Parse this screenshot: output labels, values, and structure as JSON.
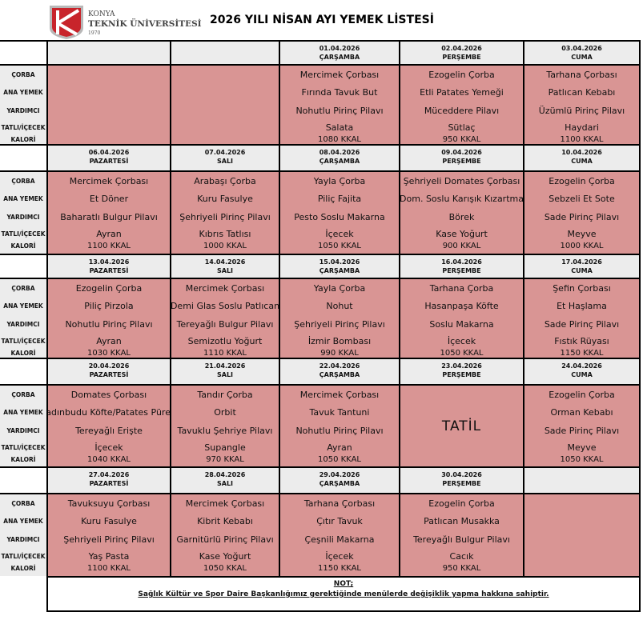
{
  "header": {
    "logo": {
      "line1": "KONYA",
      "line2": "TEKNİK ÜNİVERSİTESİ",
      "year": "1970",
      "color": "#c8242b"
    },
    "title": "2026 YILI NİSAN AYI YEMEK LİSTESİ"
  },
  "row_labels": [
    "ÇORBA",
    "ANA YEMEK",
    "YARDIMCI",
    "TATLI/İÇECEK",
    "KALORİ"
  ],
  "colors": {
    "menu_bg": "#d99594",
    "header_bg": "#ececec"
  },
  "weeks": [
    {
      "days": [
        {
          "date": "",
          "day": "",
          "menu": [
            "",
            "",
            "",
            "",
            ""
          ]
        },
        {
          "date": "",
          "day": "",
          "menu": [
            "",
            "",
            "",
            "",
            ""
          ]
        },
        {
          "date": "01.04.2026",
          "day": "ÇARŞAMBA",
          "menu": [
            "Mercimek Çorbası",
            "Fırında Tavuk But",
            "Nohutlu Pirinç Pilavı",
            "Salata",
            "1080 KKAL"
          ]
        },
        {
          "date": "02.04.2026",
          "day": "PERŞEMBE",
          "menu": [
            "Ezogelin Çorba",
            "Etli Patates Yemeği",
            "Müceddere Pilavı",
            "Sütlaç",
            "950 KKAL"
          ]
        },
        {
          "date": "03.04.2026",
          "day": "CUMA",
          "menu": [
            "Tarhana Çorbası",
            "Patlıcan Kebabı",
            "Üzümlü Pirinç Pilavı",
            "Haydari",
            "1100 KKAL"
          ]
        }
      ]
    },
    {
      "days": [
        {
          "date": "06.04.2026",
          "day": "PAZARTESİ",
          "menu": [
            "Mercimek Çorbası",
            "Et Döner",
            "Baharatlı Bulgur Pilavı",
            "Ayran",
            "1100 KKAL"
          ]
        },
        {
          "date": "07.04.2026",
          "day": "SALI",
          "menu": [
            "Arabaşı Çorba",
            "Kuru Fasulye",
            "Şehriyeli Pirinç Pilavı",
            "Kıbrıs Tatlısı",
            "1000 KKAL"
          ]
        },
        {
          "date": "08.04.2026",
          "day": "ÇARŞAMBA",
          "menu": [
            "Yayla Çorba",
            "Piliç Fajita",
            "Pesto Soslu Makarna",
            "İçecek",
            "1050 KKAL"
          ]
        },
        {
          "date": "09.04.2026",
          "day": "PERŞEMBE",
          "menu": [
            "Şehriyeli Domates Çorbası",
            "Dom. Soslu Karışık Kızartma",
            "Börek",
            "Kase Yoğurt",
            "900 KKAL"
          ]
        },
        {
          "date": "10.04.2026",
          "day": "CUMA",
          "menu": [
            "Ezogelin Çorba",
            "Sebzeli Et Sote",
            "Sade Pirinç Pilavı",
            "Meyve",
            "1000 KKAL"
          ]
        }
      ]
    },
    {
      "days": [
        {
          "date": "13.04.2026",
          "day": "PAZARTESİ",
          "menu": [
            "Ezogelin Çorba",
            "Piliç Pirzola",
            "Nohutlu Pirinç Pilavı",
            "Ayran",
            "1030 KKAL"
          ]
        },
        {
          "date": "14.04.2026",
          "day": "SALI",
          "menu": [
            "Mercimek Çorbası",
            "Demi Glas Soslu Patlıcan",
            "Tereyağlı Bulgur Pilavı",
            "Semizotlu Yoğurt",
            "1110 KKAL"
          ]
        },
        {
          "date": "15.04.2026",
          "day": "ÇARŞAMBA",
          "menu": [
            "Yayla Çorba",
            "Nohut",
            "Şehriyeli Pirinç Pilavı",
            "İzmir Bombası",
            "990 KKAL"
          ]
        },
        {
          "date": "16.04.2026",
          "day": "PERŞEMBE",
          "menu": [
            "Tarhana Çorba",
            "Hasanpaşa Köfte",
            "Soslu Makarna",
            "İçecek",
            "1050 KKAL"
          ]
        },
        {
          "date": "17.04.2026",
          "day": "CUMA",
          "menu": [
            "Şefin Çorbası",
            "Et Haşlama",
            "Sade Pirinç Pilavı",
            "Fıstık Rüyası",
            "1150 KKAL"
          ]
        }
      ]
    },
    {
      "days": [
        {
          "date": "20.04.2026",
          "day": "PAZARTESİ",
          "menu": [
            "Domates Çorbası",
            "Kadınbudu Köfte/Patates Püresi",
            "Tereyağlı Erişte",
            "İçecek",
            "1040 KKAL"
          ]
        },
        {
          "date": "21.04.2026",
          "day": "SALI",
          "menu": [
            "Tandır Çorba",
            "Orbit",
            "Tavuklu Şehriye Pilavı",
            "Supangle",
            "970 KKAL"
          ]
        },
        {
          "date": "22.04.2026",
          "day": "ÇARŞAMBA",
          "menu": [
            "Mercimek Çorbası",
            "Tavuk Tantuni",
            "Nohutlu Pirinç Pilavı",
            "Ayran",
            "1050 KKAL"
          ]
        },
        {
          "date": "23.04.2026",
          "day": "PERŞEMBE",
          "holiday": "TATİL"
        },
        {
          "date": "24.04.2026",
          "day": "CUMA",
          "menu": [
            "Ezogelin Çorba",
            "Orman Kebabı",
            "Sade Pirinç Pilavı",
            "Meyve",
            "1050 KKAL"
          ]
        }
      ]
    },
    {
      "days": [
        {
          "date": "27.04.2026",
          "day": "PAZARTESİ",
          "menu": [
            "Tavuksuyu Çorbası",
            "Kuru Fasulye",
            "Şehriyeli Pirinç Pilavı",
            "Yaş Pasta",
            "1100 KKAL"
          ]
        },
        {
          "date": "28.04.2026",
          "day": "SALI",
          "menu": [
            "Mercimek Çorbası",
            "Kibrit Kebabı",
            "Garnitürlü Pirinç Pilavı",
            "Kase Yoğurt",
            "1050 KKAL"
          ]
        },
        {
          "date": "29.04.2026",
          "day": "ÇARŞAMBA",
          "menu": [
            "Tarhana Çorbası",
            "Çıtır Tavuk",
            "Çeşnili Makarna",
            "İçecek",
            "1150 KKAL"
          ]
        },
        {
          "date": "30.04.2026",
          "day": "PERŞEMBE",
          "menu": [
            "Ezogelin Çorba",
            "Patlıcan Musakka",
            "Tereyağlı Bulgur Pilavı",
            "Cacık",
            "950 KKAL"
          ]
        },
        {
          "date": "",
          "day": "",
          "menu": [
            "",
            "",
            "",
            "",
            ""
          ]
        }
      ]
    }
  ],
  "note": {
    "title": "NOT;",
    "text": "Sağlık Kültür ve Spor Daire Başkanlığımız gerektiğinde menülerde değişiklik yapma hakkına sahiptir."
  }
}
